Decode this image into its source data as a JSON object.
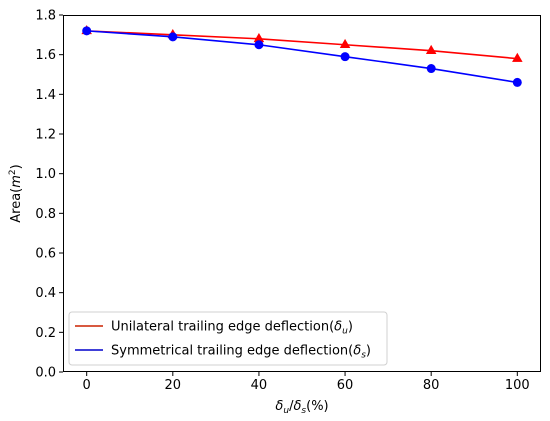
{
  "chart_data": {
    "type": "line",
    "x": [
      0,
      20,
      40,
      60,
      80,
      100
    ],
    "series": [
      {
        "name": "Unilateral trailing edge deflection(δu)",
        "name_base": "Unilateral trailing edge deflection(",
        "name_sym": "δ",
        "name_sub": "u",
        "name_end": ")",
        "values": [
          1.72,
          1.7,
          1.68,
          1.65,
          1.62,
          1.58
        ],
        "color": "#ff0000",
        "legend_color": "#cc2200",
        "marker": "triangle"
      },
      {
        "name": "Symmetrical trailing edge deflection(δs)",
        "name_base": "Symmetrical trailing edge deflection(",
        "name_sym": "δ",
        "name_sub": "s",
        "name_end": ")",
        "values": [
          1.72,
          1.69,
          1.65,
          1.59,
          1.53,
          1.46
        ],
        "color": "#0000ff",
        "legend_color": "#0000cc",
        "marker": "circle"
      }
    ],
    "xticks": [
      0,
      20,
      40,
      60,
      80,
      100
    ],
    "yticks": [
      0.0,
      0.2,
      0.4,
      0.6,
      0.8,
      1.0,
      1.2,
      1.4,
      1.6,
      1.8
    ],
    "xlim": [
      -5.5,
      105.5
    ],
    "ylim": [
      0.0,
      1.8
    ],
    "xlabel": "δu/δs(%)",
    "xlabel_parts": {
      "sym1": "δ",
      "sub1": "u",
      "slash": "/",
      "sym2": "δ",
      "sub2": "s",
      "tail": "(%)"
    },
    "ylabel": "Area(m2)",
    "ylabel_parts": {
      "base": "Area(",
      "var": "m",
      "sup": "2",
      "tail": ")"
    },
    "legend_position": "lower-left",
    "grid": false
  }
}
